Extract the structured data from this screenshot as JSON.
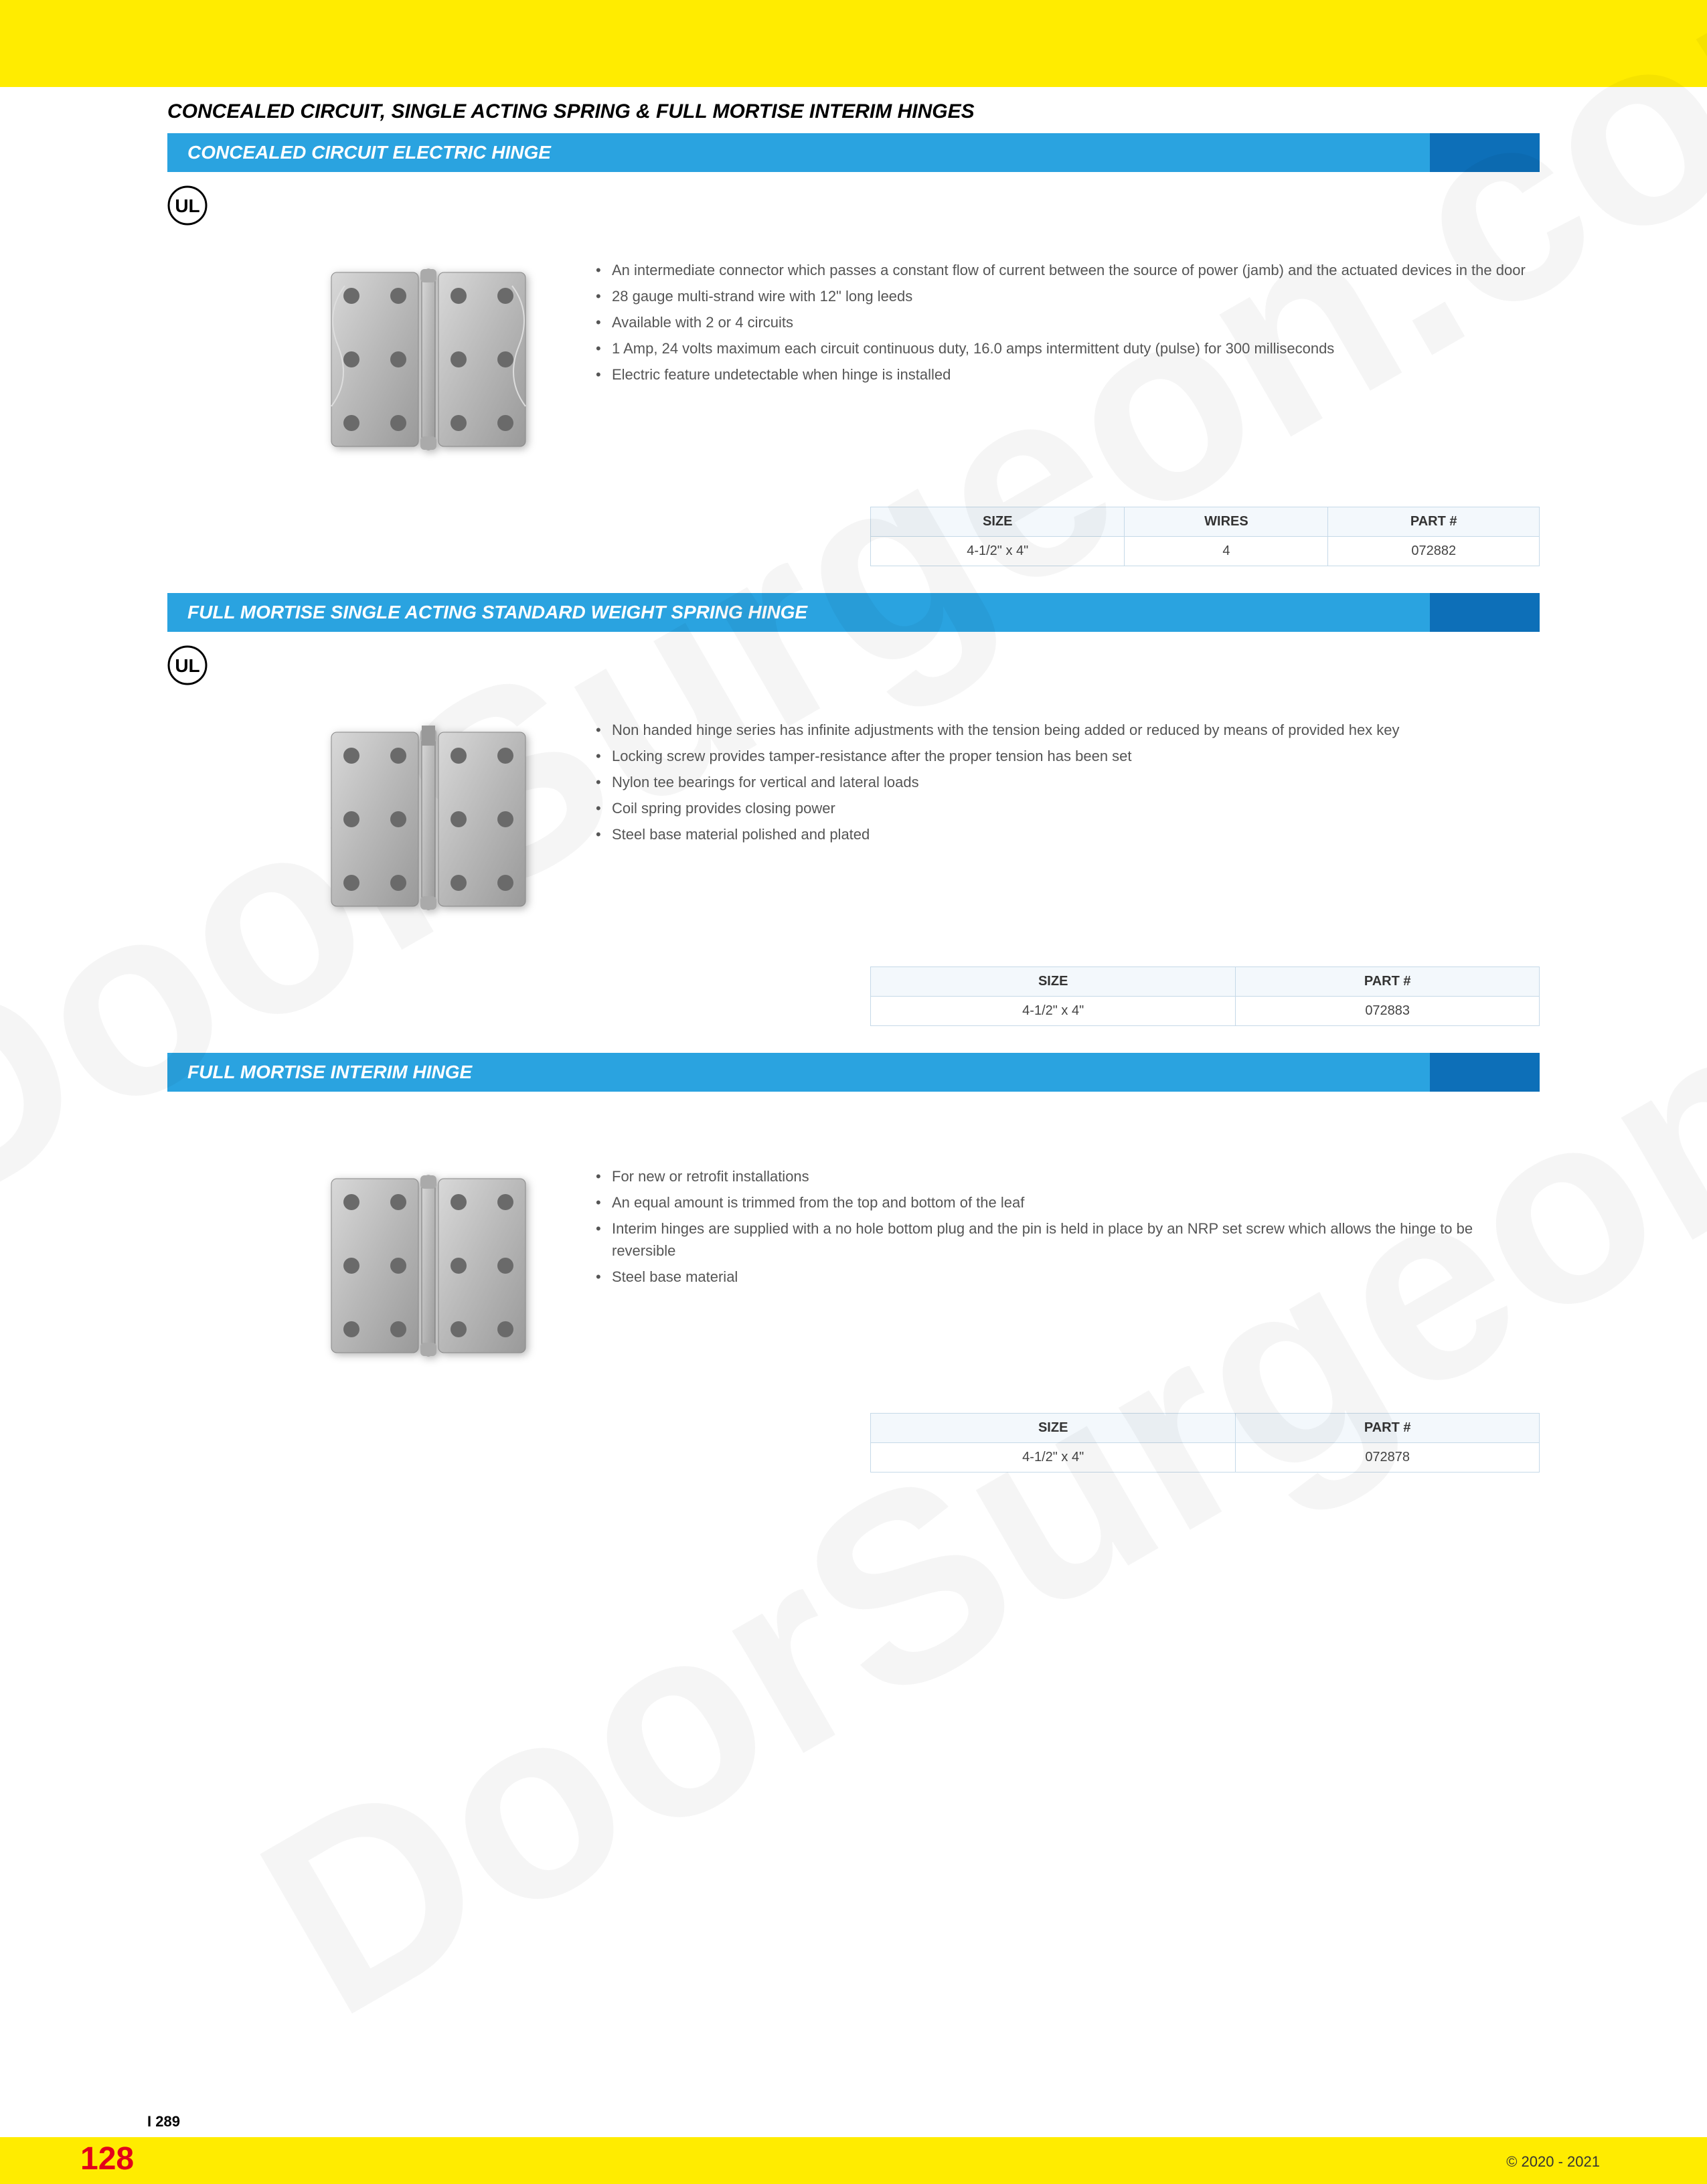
{
  "page": {
    "title": "CONCEALED CIRCUIT, SINGLE ACTING SPRING & FULL MORTISE INTERIM HINGES",
    "ref_code": "I 289",
    "page_number": "128",
    "copyright": "© 2020 - 2021",
    "watermark": "DoorSurgeon.com"
  },
  "colors": {
    "yellow": "#ffec00",
    "blue_light": "#2aa3e0",
    "blue_dark": "#0d6fb8",
    "red": "#e2001a",
    "table_header_bg": "#f3f8fc",
    "table_border": "#c5d9e8",
    "text_gray": "#555555"
  },
  "sections": [
    {
      "title": "CONCEALED CIRCUIT ELECTRIC HINGE",
      "has_ul": true,
      "image_type": "electric",
      "bullets": [
        "An intermediate connector which passes a constant flow of current between the source of power (jamb) and the actuated devices in the door",
        "28 gauge multi-strand wire with 12\" long leeds",
        "Available with 2 or 4 circuits",
        "1 Amp, 24 volts maximum each circuit continuous duty, 16.0 amps intermittent duty (pulse) for 300 milliseconds",
        "Electric feature undetectable when hinge is installed"
      ],
      "table": {
        "columns": [
          "SIZE",
          "WIRES",
          "PART #"
        ],
        "rows": [
          [
            "4-1/2\" x 4\"",
            "4",
            "072882"
          ]
        ]
      }
    },
    {
      "title": "FULL MORTISE SINGLE ACTING STANDARD WEIGHT SPRING HINGE",
      "has_ul": true,
      "image_type": "spring",
      "bullets": [
        "Non handed hinge series has infinite adjustments with the tension being added or reduced by means of provided hex key",
        "Locking screw provides tamper-resistance after the proper tension has been set",
        "Nylon tee bearings for vertical and lateral loads",
        "Coil spring provides closing power",
        "Steel base material polished and plated"
      ],
      "table": {
        "columns": [
          "SIZE",
          "PART #"
        ],
        "rows": [
          [
            "4-1/2\" x 4\"",
            "072883"
          ]
        ]
      }
    },
    {
      "title": "FULL MORTISE INTERIM HINGE",
      "has_ul": false,
      "image_type": "interim",
      "bullets": [
        "For new or retrofit installations",
        "An equal amount is trimmed from the top and bottom of the leaf",
        "Interim hinges are supplied with a no hole bottom plug and the pin is held in place by an NRP set screw which allows the hinge to be reversible",
        "Steel base material"
      ],
      "table": {
        "columns": [
          "SIZE",
          "PART #"
        ],
        "rows": [
          [
            "4-1/2\" x 4\"",
            "072878"
          ]
        ]
      }
    }
  ]
}
